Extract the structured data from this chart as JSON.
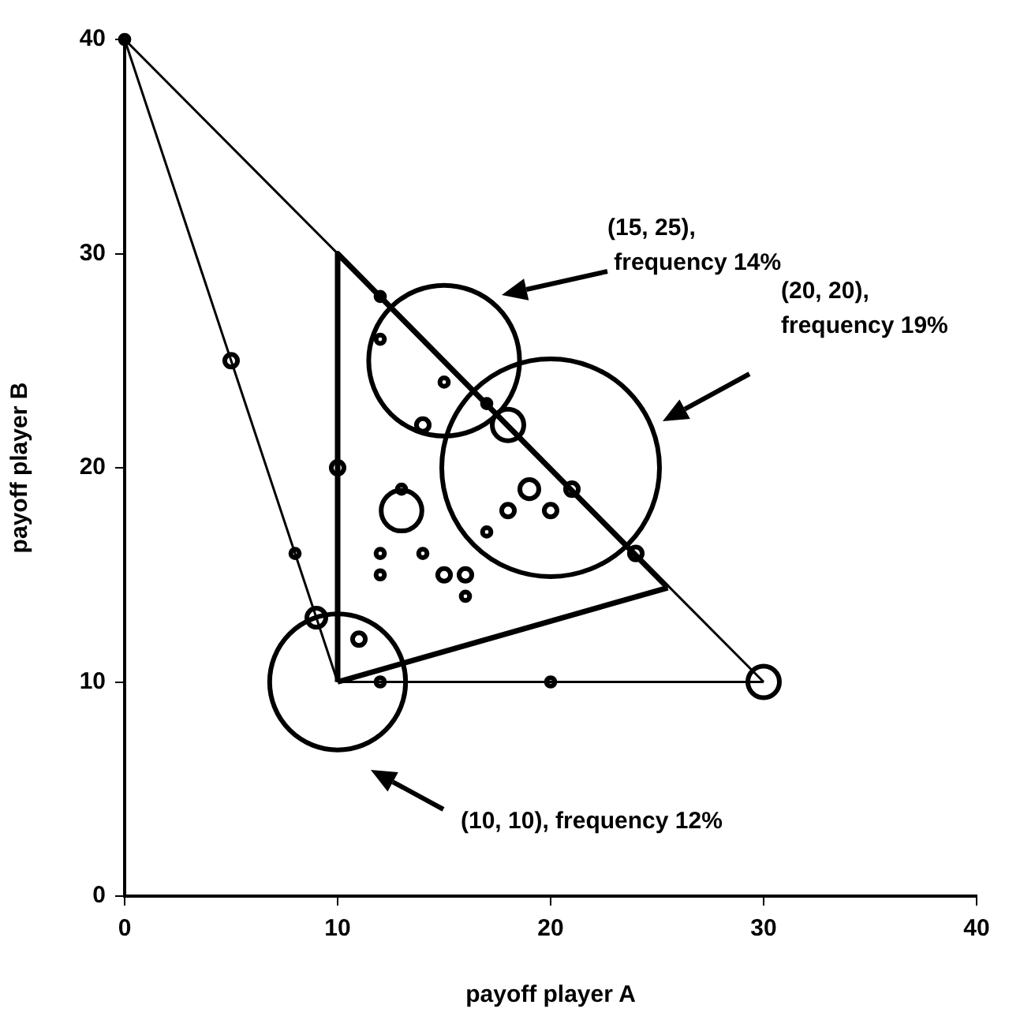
{
  "chart_data": {
    "type": "bubble",
    "xlabel": "payoff player A",
    "ylabel": "payoff player B",
    "xlim": [
      0,
      40
    ],
    "ylim": [
      0,
      40
    ],
    "xticks": [
      0,
      10,
      20,
      30,
      40
    ],
    "yticks": [
      0,
      10,
      20,
      30,
      40
    ],
    "grid": false,
    "legend": false,
    "series": [
      {
        "type": "line",
        "color": "#000000",
        "marker": "none",
        "x": [
          10,
          0,
          30
        ],
        "values": [
          10,
          40,
          10
        ]
      },
      {
        "type": "line",
        "color": "#000000",
        "marker": "none",
        "x": [
          10,
          30
        ],
        "values": [
          10,
          10
        ]
      },
      {
        "type": "line",
        "color": "#000000",
        "marker": "none",
        "x": [
          10,
          10,
          25.5
        ],
        "values": [
          10,
          30,
          14.4
        ]
      },
      {
        "type": "line",
        "color": "#000000",
        "marker": "none",
        "x": [
          10,
          25.5
        ],
        "values": [
          10,
          14.4
        ]
      },
      {
        "color": "#000000",
        "x": [
          10,
          15,
          20,
          0,
          5,
          12,
          12,
          15,
          14,
          18,
          10,
          17,
          19,
          21,
          18,
          20,
          17,
          24,
          13,
          13,
          12,
          14,
          12,
          15,
          16,
          16,
          11,
          12,
          20,
          30,
          8,
          9
        ],
        "values": [
          10,
          25,
          20,
          40,
          25,
          28,
          26,
          24,
          22,
          22,
          20,
          23,
          19,
          19,
          18,
          18,
          17,
          16,
          18,
          19,
          16,
          16,
          15,
          15,
          15,
          14,
          12,
          10,
          10,
          10,
          16,
          13
        ],
        "sizes": [
          0.39,
          0.48,
          1,
          0.0015,
          0.0034,
          0.0015,
          0.0015,
          0.0015,
          0.0034,
          0.021,
          0.0034,
          0.0015,
          0.0076,
          0.0034,
          0.0034,
          0.0034,
          0.0015,
          0.0034,
          0.035,
          0.0015,
          0.0015,
          0.0015,
          0.0015,
          0.0034,
          0.0034,
          0.0015,
          0.0034,
          0.0015,
          0.0015,
          0.021,
          0.0015,
          0.0076
        ]
      }
    ],
    "annotations": [
      "(15, 25),\n frequency 14%",
      "(20, 20),\nfrequency 19%",
      "(10, 10), frequency 12%"
    ]
  }
}
